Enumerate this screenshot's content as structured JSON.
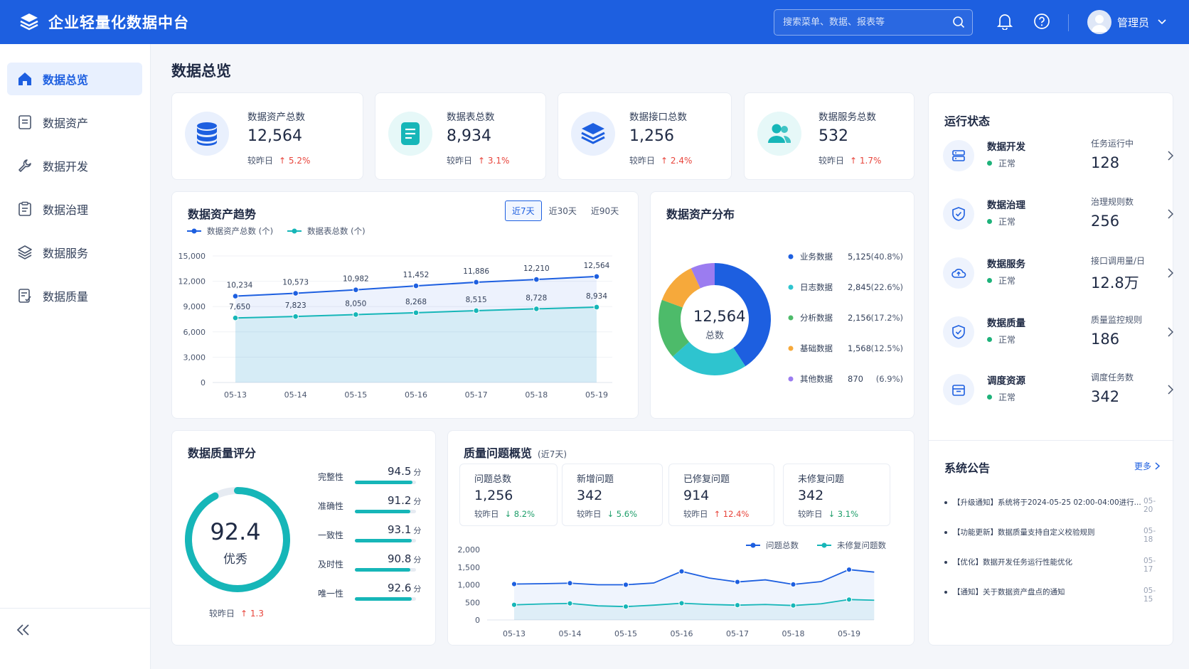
{
  "app": {
    "title": "企业轻量化数据中台"
  },
  "header": {
    "search_placeholder": "搜索菜单、数据、报表等",
    "user_name": "管理员"
  },
  "sidebar": {
    "items": [
      {
        "label": "数据总览",
        "icon": "home-icon",
        "active": true
      },
      {
        "label": "数据资产",
        "icon": "document-icon"
      },
      {
        "label": "数据开发",
        "icon": "wrench-icon"
      },
      {
        "label": "数据治理",
        "icon": "clipboard-icon"
      },
      {
        "label": "数据服务",
        "icon": "layers-icon"
      },
      {
        "label": "数据质量",
        "icon": "checklist-icon"
      }
    ]
  },
  "page": {
    "title": "数据总览"
  },
  "stats": [
    {
      "label": "数据资产总数",
      "value": "12,564",
      "cmp_label": "较昨日",
      "cmp": "5.2%",
      "icon": "database-icon",
      "color": "#1d5fe0"
    },
    {
      "label": "数据表总数",
      "value": "8,934",
      "cmp_label": "较昨日",
      "cmp": "3.1%",
      "icon": "table-icon",
      "color": "#16b6b8"
    },
    {
      "label": "数据接口总数",
      "value": "1,256",
      "cmp_label": "较昨日",
      "cmp": "2.4%",
      "icon": "layers-icon",
      "color": "#1d5fe0"
    },
    {
      "label": "数据服务总数",
      "value": "532",
      "cmp_label": "较昨日",
      "cmp": "1.7%",
      "icon": "users-icon",
      "color": "#16b6b8"
    }
  ],
  "trend": {
    "title": "数据资产趋势",
    "tabs": [
      "近7天",
      "近30天",
      "近90天"
    ]
  },
  "distribution": {
    "title": "数据资产分布",
    "center_value": "12,564",
    "center_label": "总数"
  },
  "status": {
    "title": "运行状态",
    "items": [
      {
        "name": "数据开发",
        "state": "正常",
        "metric_label": "任务运行中",
        "metric_value": "128",
        "icon": "server-icon"
      },
      {
        "name": "数据治理",
        "state": "正常",
        "metric_label": "治理规则数",
        "metric_value": "256",
        "icon": "shield-check-icon"
      },
      {
        "name": "数据服务",
        "state": "正常",
        "metric_label": "接口调用量/日",
        "metric_value": "12.8万",
        "icon": "cloud-icon"
      },
      {
        "name": "数据质量",
        "state": "正常",
        "metric_label": "质量监控规则",
        "metric_value": "186",
        "icon": "shield-check-icon"
      },
      {
        "name": "调度资源",
        "state": "正常",
        "metric_label": "调度任务数",
        "metric_value": "342",
        "icon": "box-icon"
      }
    ]
  },
  "notices": {
    "title": "系统公告",
    "more": "更多",
    "items": [
      {
        "text": "【升级通知】系统将于2024-05-25 02:00-04:00进行...",
        "date": "05-20"
      },
      {
        "text": "【功能更新】数据质量支持自定义校验规则",
        "date": "05-18"
      },
      {
        "text": "【优化】数据开发任务运行性能优化",
        "date": "05-17"
      },
      {
        "text": "【通知】关于数据资产盘点的通知",
        "date": "05-15"
      }
    ]
  },
  "quality": {
    "title": "数据质量评分",
    "score": "92.4",
    "grade": "优秀",
    "cmp_label": "较昨日",
    "cmp": "1.3",
    "unit": "分",
    "score_fraction": 0.924,
    "dims": [
      {
        "label": "完整性",
        "value": "94.5",
        "fraction": 0.945
      },
      {
        "label": "准确性",
        "value": "91.2",
        "fraction": 0.912
      },
      {
        "label": "一致性",
        "value": "93.1",
        "fraction": 0.931
      },
      {
        "label": "及时性",
        "value": "90.8",
        "fraction": 0.908
      },
      {
        "label": "唯一性",
        "value": "92.6",
        "fraction": 0.926
      }
    ]
  },
  "issues": {
    "title": "质量问题概览",
    "subtitle": "(近7天)",
    "cards": [
      {
        "label": "问题总数",
        "value": "1,256",
        "cmp_label": "较昨日",
        "cmp": "8.2%",
        "dir": "down"
      },
      {
        "label": "新增问题",
        "value": "342",
        "cmp_label": "较昨日",
        "cmp": "5.6%",
        "dir": "down"
      },
      {
        "label": "已修复问题",
        "value": "914",
        "cmp_label": "较昨日",
        "cmp": "12.4%",
        "dir": "up"
      },
      {
        "label": "未修复问题",
        "value": "342",
        "cmp_label": "较昨日",
        "cmp": "3.1%",
        "dir": "down"
      }
    ]
  },
  "chart_data": [
    {
      "type": "area",
      "title": "数据资产趋势",
      "categories": [
        "05-13",
        "05-14",
        "05-15",
        "05-16",
        "05-17",
        "05-18",
        "05-19"
      ],
      "ylim": [
        0,
        15000
      ],
      "yticks": [
        "0",
        "3,000",
        "6,000",
        "9,000",
        "12,000",
        "15,000"
      ],
      "legend": "top-left",
      "series": [
        {
          "name": "数据资产总数 (个)",
          "color": "#1d5fe0",
          "values": [
            10234,
            10573,
            10982,
            11452,
            11886,
            12210,
            12564
          ],
          "labels": [
            "10,234",
            "10,573",
            "10,982",
            "11,452",
            "11,886",
            "12,210",
            "12,564"
          ]
        },
        {
          "name": "数据表总数 (个)",
          "color": "#16b6b8",
          "values": [
            7650,
            7823,
            8050,
            8268,
            8515,
            8728,
            8934
          ],
          "labels": [
            "7,650",
            "7,823",
            "8,050",
            "8,268",
            "8,515",
            "8,728",
            "8,934"
          ]
        }
      ]
    },
    {
      "type": "pie",
      "title": "数据资产分布",
      "legend": "right",
      "slices": [
        {
          "name": "业务数据",
          "value": 5125,
          "value_label": "5,125",
          "pct": "(40.8%)",
          "color": "#1d5fe0"
        },
        {
          "name": "日志数据",
          "value": 2845,
          "value_label": "2,845",
          "pct": "(22.6%)",
          "color": "#2ec4cf"
        },
        {
          "name": "分析数据",
          "value": 2156,
          "value_label": "2,156",
          "pct": "(17.2%)",
          "color": "#4dbb6a"
        },
        {
          "name": "基础数据",
          "value": 1568,
          "value_label": "1,568",
          "pct": "(12.5%)",
          "color": "#f6a93b"
        },
        {
          "name": "其他数据",
          "value": 870,
          "value_label": "870",
          "pct": "(6.9%)",
          "color": "#9b7cf0"
        }
      ]
    },
    {
      "type": "line",
      "title": "质量问题概览",
      "categories": [
        "05-13",
        "05-14",
        "05-15",
        "05-16",
        "05-17",
        "05-18",
        "05-19"
      ],
      "x": [
        0,
        0.5,
        1,
        1.5,
        2,
        2.5,
        3,
        3.5,
        4,
        4.5,
        5,
        5.5,
        6,
        6.45
      ],
      "ylim": [
        0,
        2000
      ],
      "yticks": [
        "0",
        "500",
        "1,000",
        "1,500",
        "2,000"
      ],
      "legend": "top-right",
      "series": [
        {
          "name": "问题总数",
          "color": "#1d5fe0",
          "values": [
            1020,
            1030,
            1045,
            1000,
            1000,
            1050,
            1380,
            1190,
            1080,
            1140,
            1010,
            1090,
            1430,
            1360
          ]
        },
        {
          "name": "未修复问题数",
          "color": "#16b6b8",
          "values": [
            430,
            455,
            470,
            400,
            380,
            420,
            475,
            440,
            420,
            440,
            410,
            460,
            580,
            560
          ]
        }
      ]
    }
  ]
}
